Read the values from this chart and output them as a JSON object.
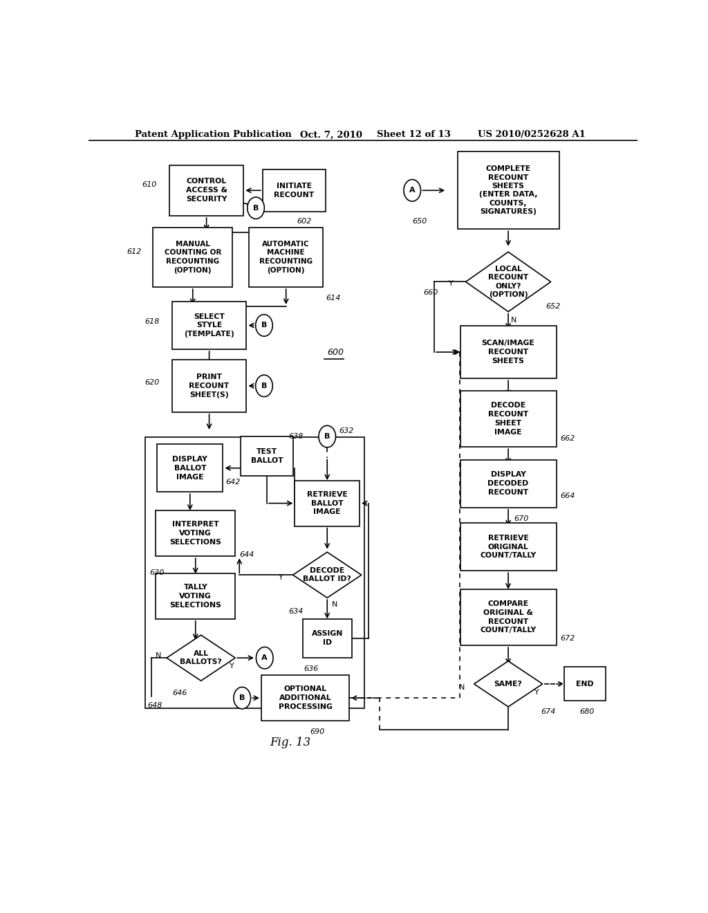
{
  "bg": "#ffffff",
  "header_left": "Patent Application Publication",
  "header_mid": "Oct. 7, 2010",
  "header_mid2": "Sheet 12 of 13",
  "header_right": "US 2010/0252628 A1",
  "fig_label": "Fig. 13"
}
